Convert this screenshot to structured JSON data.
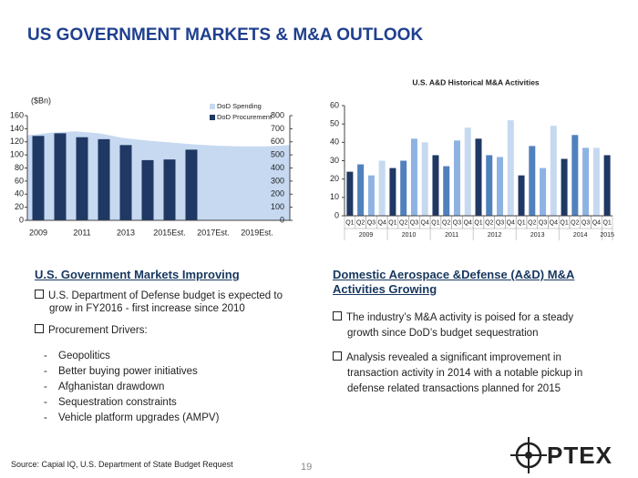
{
  "title": "US GOVERNMENT MARKETS & M&A OUTLOOK",
  "chart_data": [
    {
      "type": "bar",
      "unit_label": "($Bn)",
      "categories": [
        "2009",
        null,
        "2011",
        null,
        "2013",
        null,
        "2015Est.",
        null,
        "2017Est.",
        null,
        "2019Est.",
        null
      ],
      "ylim": [
        0,
        160
      ],
      "yticks": [
        0,
        20,
        40,
        60,
        80,
        100,
        120,
        140,
        160
      ],
      "y2lim": [
        0,
        800
      ],
      "y2ticks": [
        0,
        100,
        200,
        300,
        400,
        500,
        600,
        700,
        800
      ],
      "series": [
        {
          "name": "DoD Spending",
          "type": "area",
          "axis": "y2",
          "color": "#c6d9f1",
          "values": [
            650,
            670,
            680,
            665,
            630,
            610,
            595,
            580,
            570,
            565,
            565,
            575
          ]
        },
        {
          "name": "DoD Procurement",
          "color": "#1f3864",
          "values": [
            129,
            133,
            127,
            124,
            115,
            92,
            93,
            108,
            null,
            null,
            null,
            null
          ]
        }
      ]
    },
    {
      "type": "bar",
      "title": "U.S. A&D Historical M&A Activities",
      "categories": [
        "Q1",
        "Q2",
        "Q3",
        "Q4",
        "Q1",
        "Q2",
        "Q3",
        "Q4",
        "Q1",
        "Q2",
        "Q3",
        "Q4",
        "Q1",
        "Q2",
        "Q3",
        "Q4",
        "Q1",
        "Q2",
        "Q3",
        "Q4",
        "Q1",
        "Q2",
        "Q3",
        "Q4",
        "Q1"
      ],
      "group_labels": [
        "2009",
        "2010",
        "2011",
        "2012",
        "2013",
        "2014",
        "2015"
      ],
      "values": [
        24,
        28,
        22,
        30,
        26,
        30,
        42,
        40,
        33,
        27,
        41,
        48,
        42,
        33,
        32,
        52,
        22,
        38,
        26,
        49,
        31,
        44,
        37,
        37,
        33
      ],
      "quarter_colors": [
        "#1f3864",
        "#4f81bd",
        "#8db3e2",
        "#c6d9f1"
      ],
      "ylim": [
        0,
        60
      ],
      "yticks": [
        0,
        10,
        20,
        30,
        40,
        50,
        60
      ]
    }
  ],
  "left": {
    "heading": "U.S. Government Markets Improving",
    "bullets": [
      "U.S. Department of Defense budget is expected to grow in FY2016 - first increase since 2010",
      "Procurement Drivers:"
    ],
    "drivers": [
      "Geopolitics",
      "Better buying power initiatives",
      "Afghanistan drawdown",
      "Sequestration constraints",
      "Vehicle platform upgrades (AMPV)"
    ]
  },
  "right": {
    "heading": "Domestic Aerospace &Defense (A&D) M&A Activities Growing",
    "bullets": [
      "The industry’s M&A activity is poised for a steady growth since DoD’s budget sequestration",
      "Analysis revealed a significant improvement in transaction activity in 2014 with a notable pickup in defense related transactions planned for 2015"
    ]
  },
  "source": "Source: Capial IQ, U.S. Department of State Budget Request",
  "page_number": "19",
  "logo": "PTEX"
}
